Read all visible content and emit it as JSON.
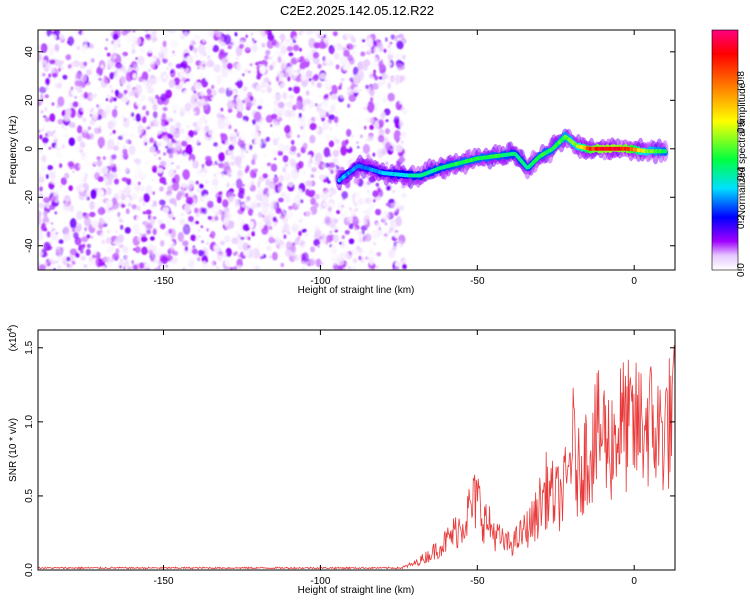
{
  "title": "C2E2.2025.142.05.12.R22",
  "chart_data": [
    {
      "type": "heatmap",
      "xlabel": "Height of straight line (km)",
      "ylabel": "Frequency (Hz)",
      "xlim": [
        -190,
        13
      ],
      "ylim": [
        -50,
        49
      ],
      "x_ticks": [
        -150,
        -100,
        -50,
        0
      ],
      "y_ticks": [
        -40,
        -20,
        0,
        20,
        40
      ],
      "colorbar": {
        "label": "Normalized spectral amplitude",
        "range": [
          0,
          1
        ],
        "ticks": [
          0.0,
          0.2,
          0.4,
          0.6,
          0.8
        ],
        "tick_labels": [
          "0.0",
          "0.2",
          "0.4",
          "0.6",
          "0.8"
        ],
        "colors": [
          "#ffffff",
          "#a000ff",
          "#0000ff",
          "#00e0ff",
          "#00ff40",
          "#ffff00",
          "#ff8000",
          "#ff0000",
          "#ff00a0"
        ]
      },
      "noise_region": {
        "x_range": [
          -190,
          -73
        ],
        "peak_amplitude": 0.15
      },
      "signal_track": [
        {
          "x": -94,
          "y": -13,
          "amplitude": 0.35
        },
        {
          "x": -88,
          "y": -7,
          "amplitude": 0.3
        },
        {
          "x": -80,
          "y": -10,
          "amplitude": 0.35
        },
        {
          "x": -72,
          "y": -11,
          "amplitude": 0.4
        },
        {
          "x": -68,
          "y": -11,
          "amplitude": 0.45
        },
        {
          "x": -62,
          "y": -8,
          "amplitude": 0.45
        },
        {
          "x": -56,
          "y": -6,
          "amplitude": 0.5
        },
        {
          "x": -50,
          "y": -4,
          "amplitude": 0.5
        },
        {
          "x": -44,
          "y": -3,
          "amplitude": 0.5
        },
        {
          "x": -38,
          "y": -2,
          "amplitude": 0.45
        },
        {
          "x": -34,
          "y": -8,
          "amplitude": 0.45
        },
        {
          "x": -30,
          "y": -3,
          "amplitude": 0.5
        },
        {
          "x": -26,
          "y": 0,
          "amplitude": 0.5
        },
        {
          "x": -22,
          "y": 5,
          "amplitude": 0.55
        },
        {
          "x": -18,
          "y": 1,
          "amplitude": 0.6
        },
        {
          "x": -14,
          "y": 0,
          "amplitude": 0.9
        },
        {
          "x": -10,
          "y": 0,
          "amplitude": 1.0
        },
        {
          "x": -6,
          "y": 0,
          "amplitude": 1.0
        },
        {
          "x": -2,
          "y": 0,
          "amplitude": 0.95
        },
        {
          "x": 4,
          "y": -1,
          "amplitude": 0.6
        },
        {
          "x": 10,
          "y": -1,
          "amplitude": 0.5
        }
      ]
    },
    {
      "type": "line",
      "xlabel": "Height of straight line (km)",
      "ylabel": "SNR (10 * v/v)",
      "y_multiplier": "(x10",
      "y_multiplier_exp": "4",
      "y_multiplier_close": ")",
      "xlim": [
        -190,
        13
      ],
      "ylim": [
        0,
        1.62
      ],
      "x_ticks": [
        -150,
        -100,
        -50,
        0
      ],
      "y_ticks": [
        0,
        0.5,
        1.0,
        1.5
      ],
      "y_tick_labels": [
        "0.0",
        "0.5",
        "1.0",
        "1.5"
      ],
      "color": "#e83a3a",
      "series": [
        {
          "x": [
            -190,
            -170,
            -150,
            -130,
            -110,
            -90,
            -75,
            -70,
            -65,
            -60,
            -55,
            -52,
            -50,
            -48,
            -45,
            -42,
            -40,
            -38,
            -35,
            -32,
            -30,
            -28,
            -25,
            -23,
            -21,
            -20,
            -18,
            -16,
            -14,
            -12,
            -10,
            -8,
            -6,
            -4,
            -2,
            0,
            2,
            4,
            6,
            8,
            10,
            13
          ],
          "y": [
            0.01,
            0.01,
            0.01,
            0.01,
            0.01,
            0.01,
            0.01,
            0.05,
            0.12,
            0.22,
            0.35,
            0.48,
            0.55,
            0.4,
            0.3,
            0.22,
            0.2,
            0.22,
            0.3,
            0.38,
            0.5,
            0.62,
            0.55,
            0.58,
            0.7,
            1.05,
            0.72,
            0.85,
            0.95,
            1.02,
            1.08,
            0.95,
            1.05,
            1.12,
            1.1,
            1.08,
            1.12,
            1.15,
            1.1,
            1.05,
            1.1,
            1.2
          ]
        }
      ]
    }
  ]
}
